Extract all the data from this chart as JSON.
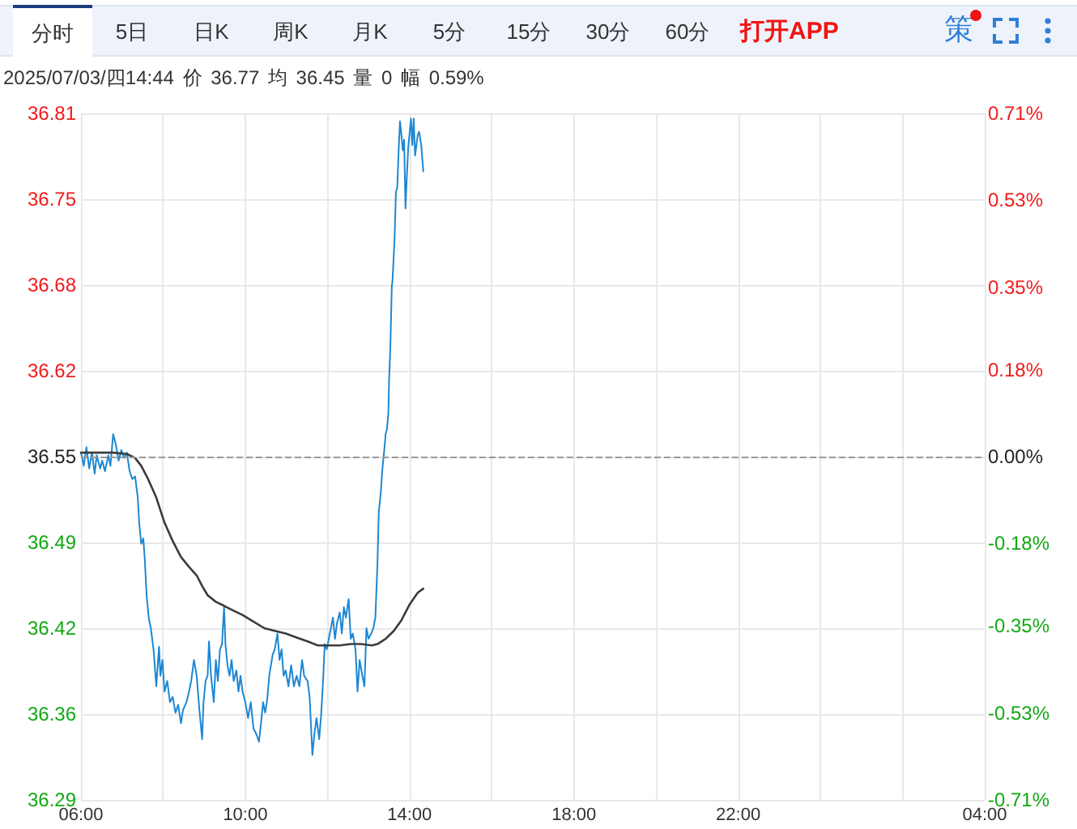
{
  "chart_data": {
    "type": "line",
    "title": "2025/07/03/四14:44 价 36.77 均 36.45 量 0 幅 0.59%",
    "annotations": [
      "分时",
      "5日",
      "日K",
      "周K",
      "月K",
      "5分",
      "15分",
      "30分",
      "60分",
      "打开APP",
      "策"
    ],
    "xlim": [
      "2025-07-03T06:00",
      "2025-07-04T04:00"
    ],
    "xticks": [
      {
        "value": "2025-07-03T06:00",
        "label": "06:00"
      },
      {
        "value": "2025-07-03T08:00",
        "label": null
      },
      {
        "value": "2025-07-03T10:00",
        "label": "10:00"
      },
      {
        "value": "2025-07-03T12:00",
        "label": null
      },
      {
        "value": "2025-07-03T14:00",
        "label": "14:00"
      },
      {
        "value": "2025-07-03T16:00",
        "label": null
      },
      {
        "value": "2025-07-03T18:00",
        "label": "18:00"
      },
      {
        "value": "2025-07-03T20:00",
        "label": null
      },
      {
        "value": "2025-07-03T22:00",
        "label": "22:00"
      },
      {
        "value": "2025-07-04T00:00",
        "label": null
      },
      {
        "value": "2025-07-04T02:00",
        "label": null
      },
      {
        "value": "2025-07-04T04:00",
        "label": "04:00"
      }
    ],
    "ylim": [
      36.29,
      36.81
    ],
    "yticks": [
      36.29,
      {
        "value": 36.355,
        "label": "36.36"
      },
      36.42,
      {
        "value": 36.485,
        "label": "36.49"
      },
      36.55,
      {
        "value": 36.615,
        "label": "36.62"
      },
      36.68,
      {
        "value": 36.745,
        "label": "36.75"
      },
      36.81
    ],
    "y2lim": [
      -0.71,
      0.71
    ],
    "y2ticks": [
      {
        "value": -0.71,
        "label": "-0.71%"
      },
      {
        "value": -0.53,
        "label": "-0.53%"
      },
      {
        "value": -0.35,
        "label": "-0.35%"
      },
      {
        "value": -0.18,
        "label": "-0.18%"
      },
      {
        "value": 0,
        "label": "0.00%"
      },
      {
        "value": 0.18,
        "label": "0.18%"
      },
      {
        "value": 0.35,
        "label": "0.35%"
      },
      {
        "value": 0.53,
        "label": "0.53%"
      },
      {
        "value": 0.71,
        "label": "0.71%"
      }
    ],
    "grid": true,
    "marker": "none",
    "ref_lines": [
      {
        "axis": "y",
        "value": 36.55,
        "color": "#999999",
        "line_style": "dashed"
      }
    ],
    "series": [
      {
        "color": "#1d87d3",
        "x": [
          "2025-07-03T06:00",
          "2025-07-03T06:04",
          "2025-07-03T06:08",
          "2025-07-03T06:12",
          "2025-07-03T06:16",
          "2025-07-03T06:20",
          "2025-07-03T06:23",
          "2025-07-03T06:28",
          "2025-07-03T06:31",
          "2025-07-03T06:35",
          "2025-07-03T06:40",
          "2025-07-03T06:43",
          "2025-07-03T06:47",
          "2025-07-03T06:51",
          "2025-07-03T06:55",
          "2025-07-03T06:59",
          "2025-07-03T07:03",
          "2025-07-03T07:07",
          "2025-07-03T07:11",
          "2025-07-03T07:15",
          "2025-07-03T07:19",
          "2025-07-03T07:23",
          "2025-07-03T07:25",
          "2025-07-03T07:28",
          "2025-07-03T07:31",
          "2025-07-03T07:33",
          "2025-07-03T07:36",
          "2025-07-03T07:39",
          "2025-07-03T07:42",
          "2025-07-03T07:46",
          "2025-07-03T07:50",
          "2025-07-03T07:54",
          "2025-07-03T07:56",
          "2025-07-03T07:59",
          "2025-07-03T08:02",
          "2025-07-03T08:06",
          "2025-07-03T08:10",
          "2025-07-03T08:14",
          "2025-07-03T08:18",
          "2025-07-03T08:22",
          "2025-07-03T08:26",
          "2025-07-03T08:29",
          "2025-07-03T08:34",
          "2025-07-03T08:37",
          "2025-07-03T08:41",
          "2025-07-03T08:45",
          "2025-07-03T08:49",
          "2025-07-03T08:53",
          "2025-07-03T08:57",
          "2025-07-03T08:59",
          "2025-07-03T09:02",
          "2025-07-03T09:05",
          "2025-07-03T09:07",
          "2025-07-03T09:10",
          "2025-07-03T09:14",
          "2025-07-03T09:17",
          "2025-07-03T09:20",
          "2025-07-03T09:23",
          "2025-07-03T09:26",
          "2025-07-03T09:29",
          "2025-07-03T09:31",
          "2025-07-03T09:34",
          "2025-07-03T09:37",
          "2025-07-03T09:40",
          "2025-07-03T09:43",
          "2025-07-03T09:47",
          "2025-07-03T09:50",
          "2025-07-03T09:53",
          "2025-07-03T09:56",
          "2025-07-03T10:00",
          "2025-07-03T10:04",
          "2025-07-03T10:08",
          "2025-07-03T10:12",
          "2025-07-03T10:16",
          "2025-07-03T10:20",
          "2025-07-03T10:23",
          "2025-07-03T10:26",
          "2025-07-03T10:29",
          "2025-07-03T10:32",
          "2025-07-03T10:35",
          "2025-07-03T10:40",
          "2025-07-03T10:43",
          "2025-07-03T10:47",
          "2025-07-03T10:50",
          "2025-07-03T10:53",
          "2025-07-03T10:56",
          "2025-07-03T10:59",
          "2025-07-03T11:03",
          "2025-07-03T11:07",
          "2025-07-03T11:11",
          "2025-07-03T11:15",
          "2025-07-03T11:19",
          "2025-07-03T11:23",
          "2025-07-03T11:26",
          "2025-07-03T11:31",
          "2025-07-03T11:34",
          "2025-07-03T11:38",
          "2025-07-03T11:41",
          "2025-07-03T11:44",
          "2025-07-03T11:48",
          "2025-07-03T11:51",
          "2025-07-03T11:54",
          "2025-07-03T11:56",
          "2025-07-03T11:59",
          "2025-07-03T12:02",
          "2025-07-03T12:05",
          "2025-07-03T12:08",
          "2025-07-03T12:11",
          "2025-07-03T12:14",
          "2025-07-03T12:18",
          "2025-07-03T12:21",
          "2025-07-03T12:24",
          "2025-07-03T12:27",
          "2025-07-03T12:31",
          "2025-07-03T12:34",
          "2025-07-03T12:37",
          "2025-07-03T12:41",
          "2025-07-03T12:44",
          "2025-07-03T12:47",
          "2025-07-03T12:51",
          "2025-07-03T12:54",
          "2025-07-03T12:57",
          "2025-07-03T13:00",
          "2025-07-03T13:04",
          "2025-07-03T13:07",
          "2025-07-03T13:10",
          "2025-07-03T13:13",
          "2025-07-03T13:15",
          "2025-07-03T13:18",
          "2025-07-03T13:20",
          "2025-07-03T13:23",
          "2025-07-03T13:25",
          "2025-07-03T13:27",
          "2025-07-03T13:29",
          "2025-07-03T13:30",
          "2025-07-03T13:32",
          "2025-07-03T13:34",
          "2025-07-03T13:35",
          "2025-07-03T13:38",
          "2025-07-03T13:40",
          "2025-07-03T13:42",
          "2025-07-03T13:44",
          "2025-07-03T13:46",
          "2025-07-03T13:48",
          "2025-07-03T13:50",
          "2025-07-03T13:52",
          "2025-07-03T13:54",
          "2025-07-03T13:56",
          "2025-07-03T13:58",
          "2025-07-03T14:02",
          "2025-07-03T14:04",
          "2025-07-03T14:06",
          "2025-07-03T14:08",
          "2025-07-03T14:12",
          "2025-07-03T14:14",
          "2025-07-03T14:17",
          "2025-07-03T14:20"
        ],
        "values": [
          36.553,
          36.543,
          36.557,
          36.541,
          36.553,
          36.537,
          36.551,
          36.541,
          36.547,
          36.539,
          36.551,
          36.543,
          36.567,
          36.559,
          36.547,
          36.555,
          36.549,
          36.553,
          36.539,
          36.533,
          36.535,
          36.519,
          36.5,
          36.484,
          36.488,
          36.474,
          36.444,
          36.428,
          36.42,
          36.404,
          36.376,
          36.406,
          36.384,
          36.396,
          36.372,
          36.38,
          36.364,
          36.368,
          36.356,
          36.362,
          36.348,
          36.358,
          36.364,
          36.37,
          36.38,
          36.396,
          36.384,
          36.358,
          36.336,
          36.364,
          36.38,
          36.384,
          36.41,
          36.384,
          36.364,
          36.396,
          36.38,
          36.404,
          36.408,
          36.436,
          36.408,
          36.392,
          36.384,
          36.396,
          36.38,
          36.388,
          36.372,
          36.384,
          36.372,
          36.364,
          36.352,
          36.364,
          36.344,
          36.34,
          36.334,
          36.348,
          36.364,
          36.356,
          36.366,
          36.384,
          36.4,
          36.404,
          36.416,
          36.396,
          36.404,
          36.384,
          36.388,
          36.376,
          36.392,
          36.376,
          36.384,
          36.376,
          36.396,
          36.384,
          36.38,
          36.368,
          36.324,
          36.34,
          36.352,
          36.336,
          36.356,
          36.384,
          36.408,
          36.404,
          36.412,
          36.42,
          36.428,
          36.412,
          36.424,
          36.432,
          36.416,
          36.436,
          36.428,
          36.442,
          36.412,
          36.416,
          36.404,
          36.372,
          36.396,
          36.384,
          36.376,
          36.42,
          36.412,
          36.416,
          36.42,
          36.428,
          36.468,
          36.508,
          36.523,
          36.539,
          36.555,
          36.567,
          36.571,
          36.583,
          36.607,
          36.635,
          36.679,
          36.683,
          36.714,
          36.75,
          36.754,
          36.782,
          36.804,
          36.794,
          36.782,
          36.79,
          36.738,
          36.762,
          36.784,
          36.806,
          36.786,
          36.806,
          36.778,
          36.794,
          36.796,
          36.786,
          36.766
        ]
      },
      {
        "color": "#3c3c3c",
        "x": [
          "2025-07-03T06:00",
          "2025-07-03T06:23",
          "2025-07-03T06:47",
          "2025-07-03T07:07",
          "2025-07-03T07:19",
          "2025-07-03T07:28",
          "2025-07-03T07:38",
          "2025-07-03T07:50",
          "2025-07-03T08:02",
          "2025-07-03T08:14",
          "2025-07-03T08:26",
          "2025-07-03T08:37",
          "2025-07-03T08:49",
          "2025-07-03T08:57",
          "2025-07-03T09:05",
          "2025-07-03T09:17",
          "2025-07-03T09:29",
          "2025-07-03T09:40",
          "2025-07-03T09:56",
          "2025-07-03T10:12",
          "2025-07-03T10:28",
          "2025-07-03T10:43",
          "2025-07-03T10:59",
          "2025-07-03T11:15",
          "2025-07-03T11:31",
          "2025-07-03T11:46",
          "2025-07-03T12:02",
          "2025-07-03T12:18",
          "2025-07-03T12:34",
          "2025-07-03T12:49",
          "2025-07-03T13:05",
          "2025-07-03T13:13",
          "2025-07-03T13:25",
          "2025-07-03T13:37",
          "2025-07-03T13:48",
          "2025-07-03T14:00",
          "2025-07-03T14:12",
          "2025-07-03T14:20"
        ],
        "values": [
          36.553,
          36.553,
          36.553,
          36.552,
          36.549,
          36.543,
          36.533,
          36.519,
          36.5,
          36.486,
          36.474,
          36.467,
          36.46,
          36.452,
          36.445,
          36.44,
          36.437,
          36.434,
          36.43,
          36.425,
          36.42,
          36.418,
          36.416,
          36.413,
          36.41,
          36.407,
          36.407,
          36.407,
          36.408,
          36.408,
          36.407,
          36.408,
          36.412,
          36.418,
          36.426,
          36.438,
          36.447,
          36.45
        ]
      }
    ]
  }
}
